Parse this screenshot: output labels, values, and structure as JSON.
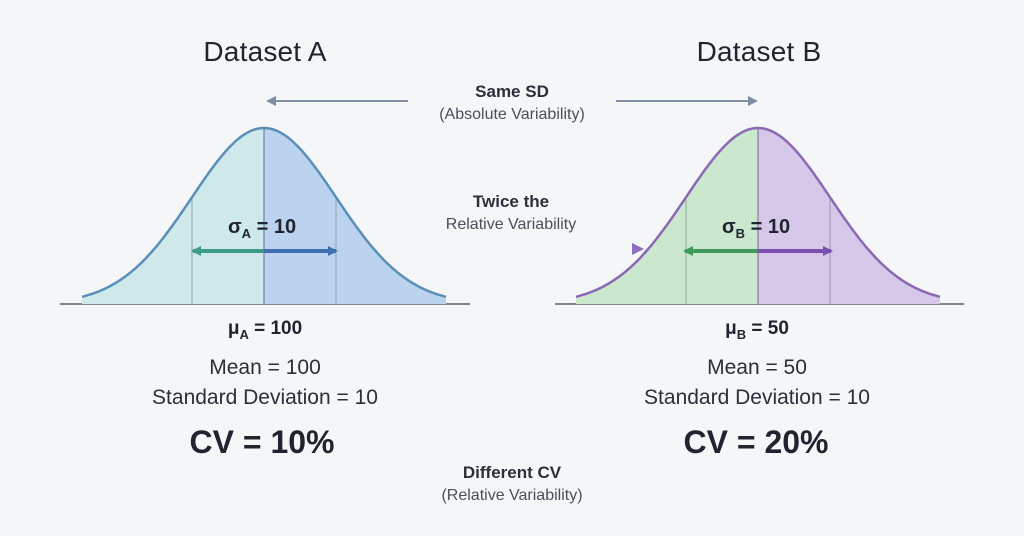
{
  "datasets": [
    {
      "title": "Dataset A",
      "sigma_symbol": "σ",
      "sigma_sub": "A",
      "sigma_value": "= 10",
      "mu_symbol": "μ",
      "mu_sub": "A",
      "mu_value": "= 100",
      "mean_text": "Mean = 100",
      "sd_text": "Standard Deviation = 10",
      "cv_text": "CV = 10%",
      "colors": {
        "left_fill": "#cfe8ea",
        "right_fill": "#bcd3ef",
        "curve": "#5a8fb8",
        "arrow_left": "#3f9a86",
        "arrow_right": "#3f6fb0"
      }
    },
    {
      "title": "Dataset B",
      "sigma_symbol": "σ",
      "sigma_sub": "B",
      "sigma_value": "= 10",
      "mu_symbol": "μ",
      "mu_sub": "B",
      "mu_value": "= 50",
      "mean_text": "Mean = 50",
      "sd_text": "Standard Deviation = 10",
      "cv_text": "CV = 20%",
      "colors": {
        "left_fill": "#cbe8cf",
        "right_fill": "#d6c8e8",
        "curve": "#8a68b5",
        "arrow_left": "#3f9a5a",
        "arrow_right": "#7b4fb0"
      }
    }
  ],
  "annotations": {
    "same_sd": "Same SD",
    "same_sd_sub": "(Absolute Variability)",
    "twice": "Twice the",
    "twice_sub": "Relative Variability",
    "different_cv": "Different CV",
    "different_cv_sub": "(Relative Variability)"
  },
  "colors": {
    "background": "#f5f6f8",
    "baseline": "#7d8590",
    "sd_arrow": "#7f8fa8",
    "twice_arrow": "#8a6fc0"
  }
}
